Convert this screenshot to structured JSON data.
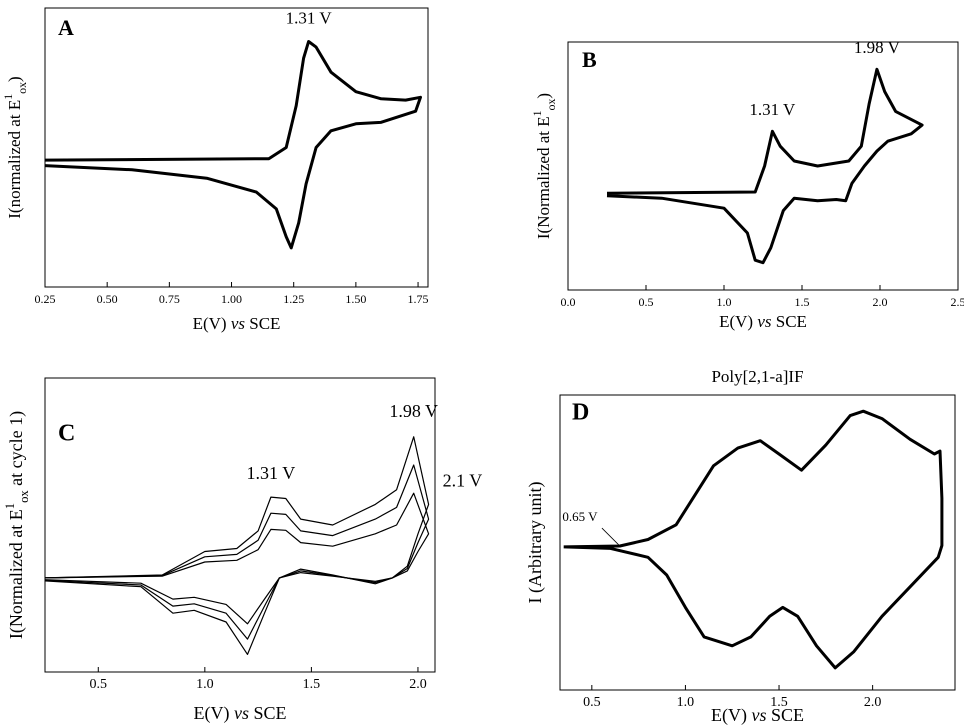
{
  "chart_data": [
    {
      "type": "line",
      "label": "A",
      "xlabel": [
        "E(V) ",
        "vs",
        " SCE"
      ],
      "ylabel": [
        "I(normalized at E",
        "1",
        "ox",
        ")"
      ],
      "xlim": [
        0.25,
        1.79
      ],
      "ylim": [
        0,
        10
      ],
      "xticks": [
        {
          "value": 0.25,
          "label": "0.25"
        },
        {
          "value": 0.5,
          "label": "0.50"
        },
        {
          "value": 0.75,
          "label": "0.75"
        },
        {
          "value": 1.0,
          "label": "1.00"
        },
        1.25,
        {
          "value": 1.5,
          "label": "1.50"
        },
        1.75
      ],
      "x": [
        0.25,
        1.15,
        1.22,
        1.26,
        1.29,
        1.31,
        1.34,
        1.4,
        1.5,
        1.6,
        1.7,
        1.76,
        1.74,
        1.6,
        1.5,
        1.4,
        1.34,
        1.3,
        1.27,
        1.24,
        1.22,
        1.18,
        1.1,
        0.9,
        0.6,
        0.25
      ],
      "series": [
        {
          "color": "#000000",
          "values": [
            4.55,
            4.6,
            5.0,
            6.5,
            8.2,
            8.8,
            8.6,
            7.7,
            7.0,
            6.75,
            6.7,
            6.8,
            6.3,
            5.9,
            5.85,
            5.6,
            5.0,
            3.7,
            2.3,
            1.4,
            1.8,
            2.8,
            3.4,
            3.9,
            4.2,
            4.35
          ]
        }
      ],
      "annotations": [
        {
          "text": "1.31 V",
          "x": 1.31,
          "y": 8.8
        }
      ]
    },
    {
      "type": "line",
      "label": "B",
      "xlabel": [
        "E(V) ",
        "vs",
        " SCE"
      ],
      "ylabel": [
        "I(Normalized at E",
        "1",
        "ox",
        ")"
      ],
      "xlim": [
        0,
        2.5
      ],
      "ylim": [
        0,
        10
      ],
      "xticks": [
        {
          "value": 0,
          "label": "0.0"
        },
        0.5,
        {
          "value": 1,
          "label": "1.0"
        },
        1.5,
        {
          "value": 2,
          "label": "2.0"
        },
        2.5
      ],
      "x": [
        0.25,
        1.2,
        1.26,
        1.31,
        1.36,
        1.45,
        1.6,
        1.8,
        1.88,
        1.93,
        1.98,
        2.03,
        2.1,
        2.27,
        2.2,
        2.05,
        1.98,
        1.9,
        1.82,
        1.78,
        1.72,
        1.6,
        1.45,
        1.38,
        1.3,
        1.25,
        1.2,
        1.15,
        1.0,
        0.6,
        0.25
      ],
      "series": [
        {
          "color": "#000000",
          "values": [
            3.9,
            3.95,
            5.0,
            6.4,
            5.8,
            5.2,
            5.0,
            5.2,
            5.8,
            7.5,
            8.9,
            8.0,
            7.2,
            6.65,
            6.3,
            6.0,
            5.6,
            5.0,
            4.3,
            3.6,
            3.65,
            3.6,
            3.7,
            3.2,
            1.7,
            1.1,
            1.2,
            2.3,
            3.3,
            3.7,
            3.8
          ]
        }
      ],
      "annotations": [
        {
          "text": "1.31 V",
          "x": 1.31,
          "y": 6.4
        },
        {
          "text": "1.98 V",
          "x": 1.98,
          "y": 8.9
        }
      ]
    },
    {
      "type": "line",
      "label": "C",
      "xlabel": [
        "E(V) ",
        "vs",
        " SCE"
      ],
      "ylabel": [
        "I(Normalized at E",
        "1",
        "ox",
        " at cycle 1)"
      ],
      "xlim": [
        0.25,
        2.08
      ],
      "ylim": [
        0,
        10
      ],
      "xticks": [
        0.5,
        {
          "value": 1,
          "label": "1.0"
        },
        1.5,
        {
          "value": 2,
          "label": "2.0"
        }
      ],
      "x": [
        0.25,
        0.8,
        1.0,
        1.15,
        1.25,
        1.31,
        1.38,
        1.45,
        1.6,
        1.8,
        1.9,
        1.98,
        2.05,
        2.05,
        2.0,
        1.95,
        1.88,
        1.8,
        1.6,
        1.45,
        1.35,
        1.28,
        1.2,
        1.1,
        0.95,
        0.85,
        0.7,
        0.25
      ],
      "series": [
        {
          "color": "#000000",
          "values": [
            3.2,
            3.3,
            4.1,
            4.2,
            4.8,
            5.95,
            5.9,
            5.2,
            5.0,
            5.7,
            6.2,
            8.0,
            5.7,
            5.7,
            4.7,
            3.6,
            3.2,
            3.0,
            3.3,
            3.5,
            3.2,
            2.0,
            0.6,
            1.7,
            2.1,
            2.0,
            2.9,
            3.1
          ]
        },
        {
          "color": "#000000",
          "values": [
            3.2,
            3.28,
            3.92,
            4.0,
            4.48,
            5.4,
            5.36,
            4.8,
            4.64,
            5.2,
            5.6,
            7.04,
            5.2,
            5.2,
            4.4,
            3.52,
            3.2,
            3.04,
            3.28,
            3.44,
            3.2,
            2.24,
            1.12,
            2.0,
            2.32,
            2.24,
            2.96,
            3.12
          ]
        },
        {
          "color": "#000000",
          "values": [
            3.2,
            3.26,
            3.74,
            3.8,
            4.16,
            4.85,
            4.82,
            4.4,
            4.28,
            4.7,
            5.0,
            6.08,
            4.7,
            4.7,
            4.1,
            3.44,
            3.2,
            3.08,
            3.26,
            3.38,
            3.2,
            2.48,
            1.64,
            2.3,
            2.54,
            2.48,
            3.02,
            3.14
          ]
        }
      ],
      "annotations": [
        {
          "text": "1.31 V",
          "x": 1.31,
          "y": 5.95
        },
        {
          "text": "1.98 V",
          "x": 1.98,
          "y": 8.0
        },
        {
          "text": "2.1 V",
          "x": 2.05,
          "y": 5.7
        }
      ]
    },
    {
      "type": "line",
      "label": "D",
      "title": "Poly[2,1-a]IF",
      "xlabel": [
        "E(V) ",
        "vs",
        " SCE"
      ],
      "ylabel": [
        "I (Arbitrary unit)"
      ],
      "xlim": [
        0.33,
        2.44
      ],
      "ylim": [
        0,
        10
      ],
      "xticks": [
        0.5,
        {
          "value": 1,
          "label": "1.0"
        },
        1.5,
        {
          "value": 2,
          "label": "2.0"
        }
      ],
      "x": [
        0.35,
        0.65,
        0.8,
        0.95,
        1.05,
        1.15,
        1.28,
        1.4,
        1.5,
        1.62,
        1.75,
        1.88,
        1.95,
        2.05,
        2.2,
        2.33,
        2.36,
        2.37,
        2.37,
        2.35,
        2.2,
        2.05,
        1.9,
        1.8,
        1.7,
        1.6,
        1.52,
        1.45,
        1.35,
        1.25,
        1.1,
        1.0,
        0.9,
        0.8,
        0.6,
        0.35
      ],
      "series": [
        {
          "color": "#000000",
          "values": [
            4.85,
            4.88,
            5.1,
            5.6,
            6.6,
            7.6,
            8.2,
            8.45,
            8.0,
            7.45,
            8.3,
            9.3,
            9.45,
            9.2,
            8.5,
            8.0,
            8.1,
            6.5,
            4.9,
            4.5,
            3.5,
            2.5,
            1.3,
            0.75,
            1.5,
            2.5,
            2.8,
            2.5,
            1.8,
            1.5,
            1.8,
            2.8,
            3.9,
            4.5,
            4.8,
            4.85
          ]
        }
      ],
      "annotations": [
        {
          "text": "0.65 V",
          "x": 0.65,
          "y": 4.88
        }
      ]
    }
  ]
}
